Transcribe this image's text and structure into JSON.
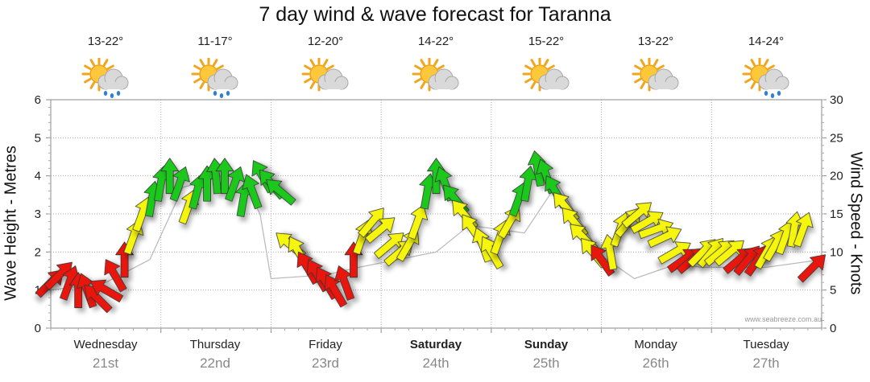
{
  "title": "7 day wind & wave forecast for Taranna",
  "watermark": "www.seabreeze.com.au",
  "y_left_label": "Wave Height - Metres",
  "y_right_label": "Wind Speed - Knots",
  "colors": {
    "low": "#e8120e",
    "mid": "#f5f50a",
    "high": "#1ec81e",
    "wave": "#b8b8b8",
    "grid": "#aaaaaa"
  },
  "days": [
    {
      "name": "Wednesday",
      "date": "21st",
      "temp": "13-22°",
      "icon": "sun-cloud-rain-icon",
      "bold": false
    },
    {
      "name": "Thursday",
      "date": "22nd",
      "temp": "11-17°",
      "icon": "sun-cloud-rain-icon",
      "bold": false
    },
    {
      "name": "Friday",
      "date": "23rd",
      "temp": "12-20°",
      "icon": "sun-cloud-icon",
      "bold": false
    },
    {
      "name": "Saturday",
      "date": "24th",
      "temp": "14-22°",
      "icon": "sun-cloud-icon",
      "bold": true
    },
    {
      "name": "Sunday",
      "date": "25th",
      "temp": "15-22°",
      "icon": "sun-cloud-icon",
      "bold": true
    },
    {
      "name": "Monday",
      "date": "26th",
      "temp": "13-22°",
      "icon": "sun-cloud-icon",
      "bold": false
    },
    {
      "name": "Tuesday",
      "date": "27th",
      "temp": "14-24°",
      "icon": "sun-cloud-rain-icon",
      "bold": false
    }
  ],
  "chart_data": {
    "type": "line",
    "title": "7 day wind & wave forecast for Taranna",
    "xlabel": "",
    "x_range_days": [
      0,
      7
    ],
    "ylabel": "Wave Height - Metres",
    "ylim": [
      0,
      6
    ],
    "yticks": [
      0,
      1,
      2,
      3,
      4,
      5,
      6
    ],
    "y2label": "Wind Speed - Knots",
    "y2lim": [
      0,
      30
    ],
    "y2ticks": [
      0,
      5,
      10,
      15,
      20,
      25,
      30
    ],
    "categories": [
      "Wednesday 21st",
      "Thursday 22nd",
      "Friday 23rd",
      "Saturday 24th",
      "Sunday 25th",
      "Monday 26th",
      "Tuesday 27th"
    ],
    "wave_series": {
      "name": "Wave height (m)",
      "x": [
        0,
        0.5,
        0.9,
        1.2,
        1.7,
        1.9,
        2.0,
        2.5,
        2.8,
        3.5,
        3.8,
        4.3,
        4.6,
        5.0,
        5.3,
        5.7,
        5.9,
        6.5,
        7.0
      ],
      "y": [
        1.0,
        1.2,
        1.8,
        3.7,
        4.1,
        3.0,
        1.3,
        1.4,
        1.6,
        2.0,
        2.7,
        2.5,
        3.8,
        1.9,
        1.3,
        1.7,
        1.6,
        1.6,
        1.8
      ]
    },
    "wind_series": {
      "name": "Wind speed (knots) and direction (degrees)",
      "x": [
        0.0,
        0.08,
        0.17,
        0.25,
        0.33,
        0.42,
        0.5,
        0.58,
        0.67,
        0.75,
        0.83,
        0.92,
        1.0,
        1.08,
        1.17,
        1.25,
        1.33,
        1.42,
        1.5,
        1.58,
        1.67,
        1.75,
        1.83,
        1.92,
        2.0,
        2.08,
        2.17,
        2.25,
        2.33,
        2.42,
        2.5,
        2.58,
        2.67,
        2.75,
        2.83,
        2.92,
        3.0,
        3.08,
        3.17,
        3.25,
        3.33,
        3.42,
        3.5,
        3.58,
        3.67,
        3.75,
        3.83,
        3.92,
        4.0,
        4.08,
        4.17,
        4.25,
        4.33,
        4.42,
        4.5,
        4.58,
        4.67,
        4.75,
        4.83,
        4.92,
        5.0,
        5.08,
        5.17,
        5.25,
        5.33,
        5.42,
        5.5,
        5.58,
        5.67,
        5.75,
        5.83,
        5.92,
        6.0,
        6.08,
        6.17,
        6.25,
        6.33,
        6.42,
        6.5,
        6.58,
        6.67,
        6.75,
        6.83,
        6.92
      ],
      "speed": [
        6,
        7,
        6,
        5,
        5,
        4,
        5,
        7,
        9,
        12,
        15,
        17,
        19,
        20,
        19,
        16,
        18,
        19,
        20,
        20,
        19,
        17,
        18,
        20,
        19,
        18,
        11,
        10,
        8,
        7,
        6,
        5,
        6,
        9,
        12,
        14,
        13,
        11,
        10,
        11,
        14,
        18,
        20,
        19,
        17,
        15,
        13,
        11,
        10,
        12,
        14,
        17,
        19,
        21,
        20,
        18,
        16,
        14,
        12,
        10,
        9,
        10,
        13,
        14,
        15,
        14,
        13,
        12,
        10,
        9,
        9,
        10,
        10,
        10,
        10,
        9,
        9,
        9,
        10,
        11,
        12,
        13,
        13,
        8
      ],
      "direction_deg": [
        225,
        225,
        200,
        180,
        160,
        135,
        120,
        150,
        180,
        200,
        200,
        190,
        190,
        180,
        200,
        200,
        195,
        180,
        175,
        180,
        200,
        190,
        160,
        150,
        140,
        130,
        130,
        150,
        150,
        150,
        150,
        150,
        160,
        180,
        200,
        220,
        230,
        230,
        230,
        210,
        200,
        190,
        180,
        160,
        140,
        140,
        145,
        160,
        150,
        200,
        210,
        200,
        190,
        170,
        160,
        150,
        140,
        140,
        135,
        140,
        145,
        170,
        200,
        220,
        230,
        240,
        250,
        245,
        240,
        235,
        230,
        225,
        220,
        230,
        230,
        230,
        220,
        215,
        210,
        210,
        200,
        190,
        200,
        225
      ],
      "color_thresholds_knots": {
        "mid": 10,
        "high": 17
      }
    }
  }
}
